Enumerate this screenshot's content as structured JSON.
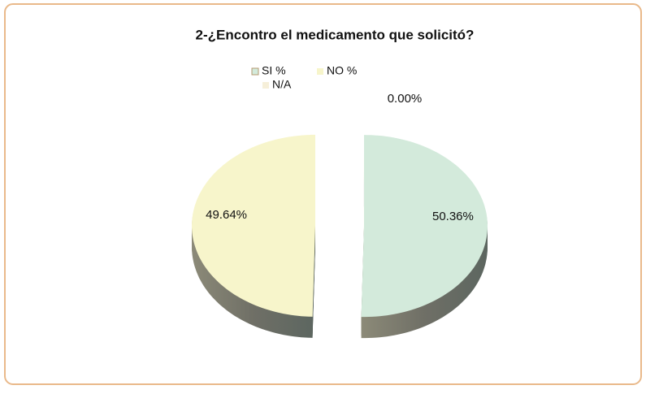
{
  "chart_data": {
    "type": "pie",
    "title": "2-¿Encontro el medicamento que solicitó?",
    "categories": [
      "SI %",
      "NO %",
      "N/A"
    ],
    "values": [
      50.36,
      49.64,
      0
    ],
    "value_labels": [
      "50.36%",
      "49.64%",
      "0.00%"
    ],
    "colors": [
      "#d3eadb",
      "#f7f5cb",
      "#f6efd9"
    ],
    "legend": "top"
  }
}
